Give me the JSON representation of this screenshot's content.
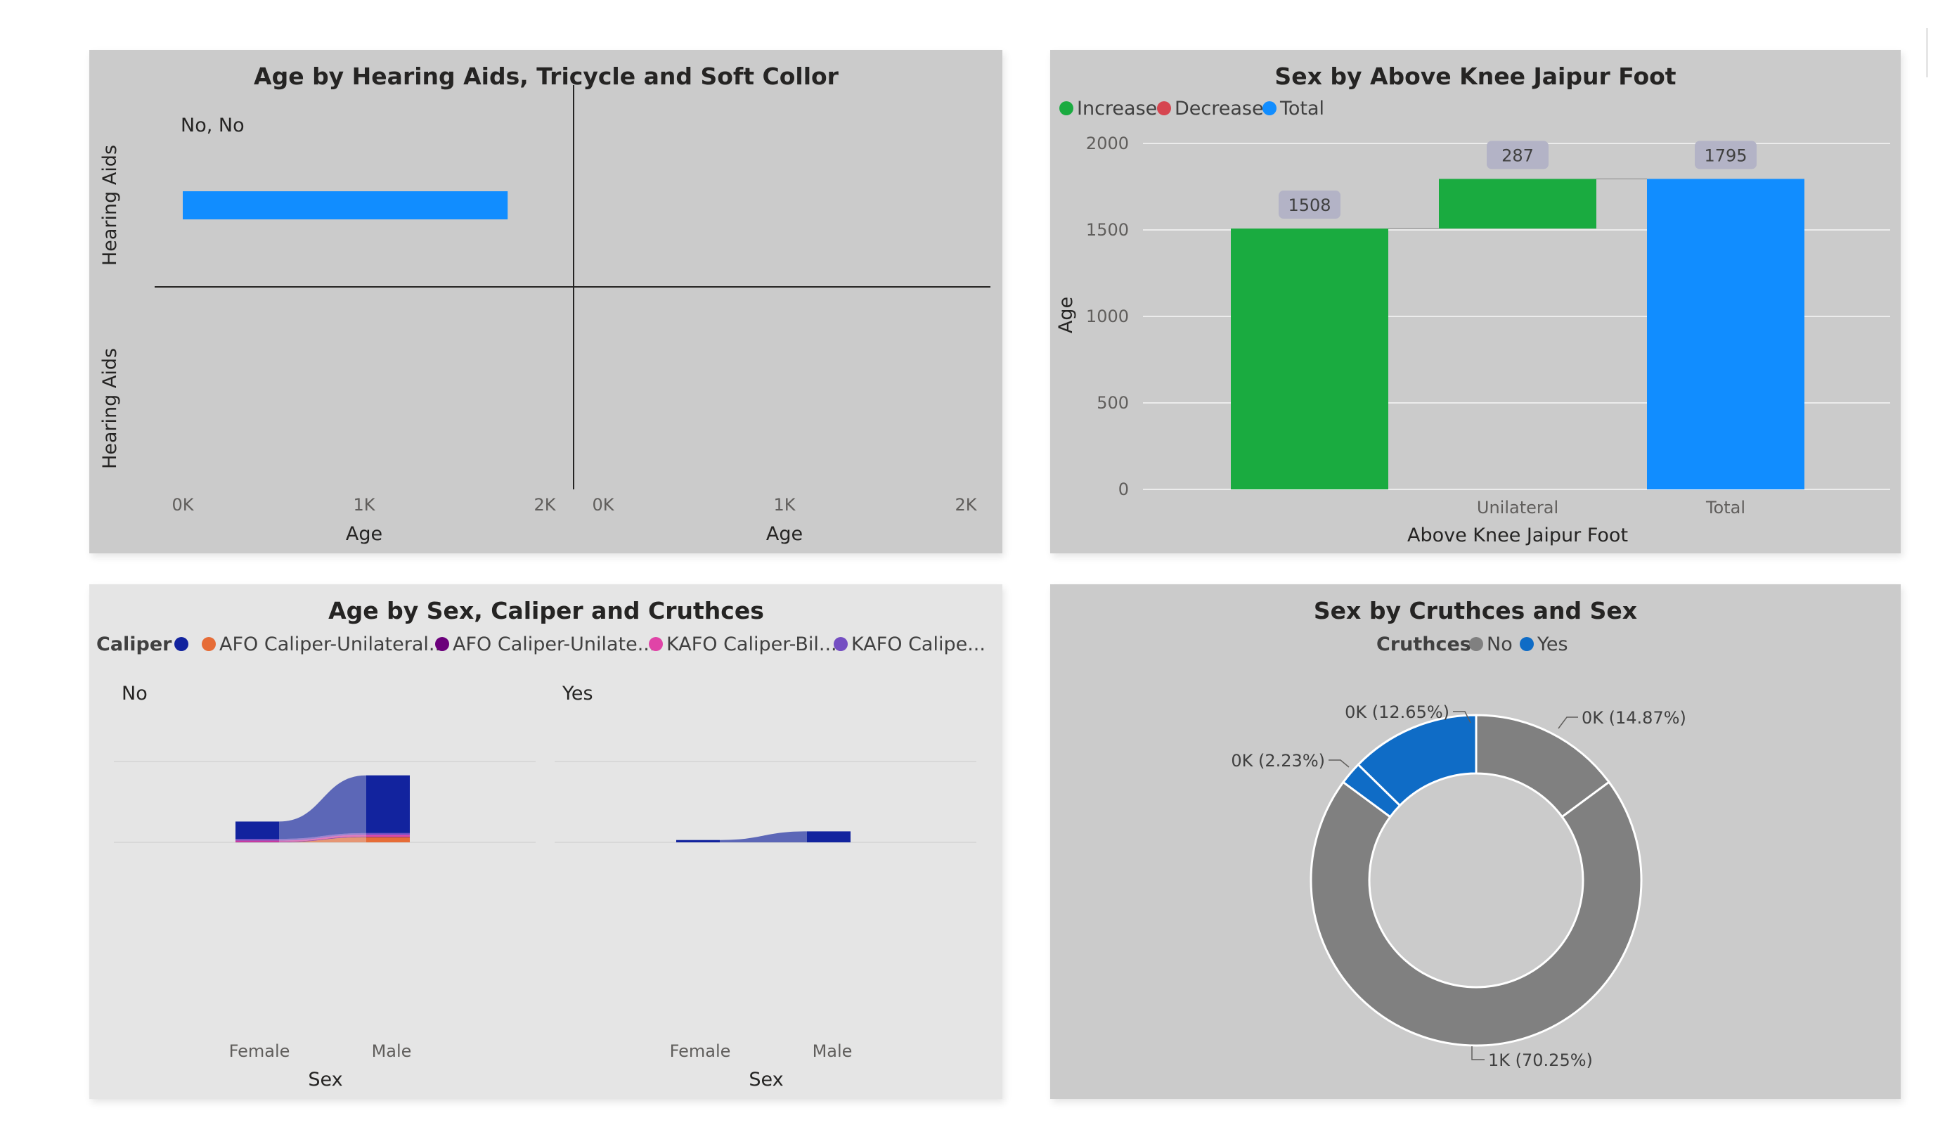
{
  "colors": {
    "increase": "#1aab40",
    "decrease": "#d64550",
    "total": "#118dff",
    "navy": "#12239e",
    "orange": "#e66c37",
    "purple": "#6b007b",
    "pink": "#e044a7",
    "violet": "#744ec2",
    "donut_no": "#808080",
    "donut_yes": "#0f6cc6"
  },
  "chart_data": [
    {
      "type": "bar",
      "title": "Age by Hearing Aids, Tricycle and Soft Collor",
      "panels": [
        {
          "label": "No, No",
          "ylabel": "Hearing Aids",
          "xlabel": "Age",
          "xticks": [
            "0K",
            "1K",
            "2K"
          ],
          "xlim": [
            0,
            2000
          ],
          "values": [
            1795
          ]
        },
        {
          "label": "",
          "ylabel": "Hearing Aids",
          "xlabel": "Age",
          "xticks": [
            "0K",
            "1K",
            "2K"
          ],
          "xlim": [
            0,
            2000
          ],
          "values": []
        }
      ]
    },
    {
      "type": "bar",
      "subtype": "waterfall",
      "title": "Sex by Above Knee Jaipur Foot",
      "legend": [
        "Increase",
        "Decrease",
        "Total"
      ],
      "categories": [
        "",
        "Unilateral",
        "Total"
      ],
      "values": [
        1508,
        287,
        1795
      ],
      "data_labels": [
        "1508",
        "287",
        "1795"
      ],
      "bar_kind": [
        "increase",
        "increase",
        "total"
      ],
      "xlabel": "Above Knee Jaipur Foot",
      "ylabel": "Age",
      "ylim": [
        0,
        2000
      ],
      "yticks": [
        0,
        500,
        1000,
        1500,
        2000
      ],
      "ytick_labels": [
        "0",
        "500",
        "1000",
        "1500",
        "2000"
      ]
    },
    {
      "type": "bar",
      "subtype": "ribbon",
      "title": "Age by Sex, Caliper and Cruthces",
      "legend_title": "Caliper",
      "legend": [
        "",
        "AFO Caliper-Unilateral...",
        "AFO Caliper-Unilate...",
        "KAFO Caliper-Bil...",
        "KAFO Calipe..."
      ],
      "categories": [
        "Female",
        "Male"
      ],
      "xlabel": "Sex",
      "panels": [
        {
          "label": "No",
          "series": [
            {
              "values": [
                300,
                1000
              ]
            },
            {
              "values": [
                0,
                90
              ]
            },
            {
              "values": [
                10,
                10
              ]
            },
            {
              "values": [
                20,
                30
              ]
            },
            {
              "values": [
                30,
                30
              ]
            }
          ]
        },
        {
          "label": "Yes",
          "series": [
            {
              "values": [
                40,
                190
              ]
            }
          ]
        }
      ]
    },
    {
      "type": "pie",
      "subtype": "donut",
      "title": "Sex by Cruthces and Sex",
      "legend_title": "Cruthces",
      "legend": [
        "No",
        "Yes"
      ],
      "slices": [
        {
          "group": "No",
          "value": 14.87,
          "label": "0K (14.87%)"
        },
        {
          "group": "No",
          "value": 70.25,
          "label": "1K (70.25%)"
        },
        {
          "group": "Yes",
          "value": 2.23,
          "label": "0K (2.23%)"
        },
        {
          "group": "Yes",
          "value": 12.65,
          "label": "0K (12.65%)"
        }
      ]
    }
  ]
}
